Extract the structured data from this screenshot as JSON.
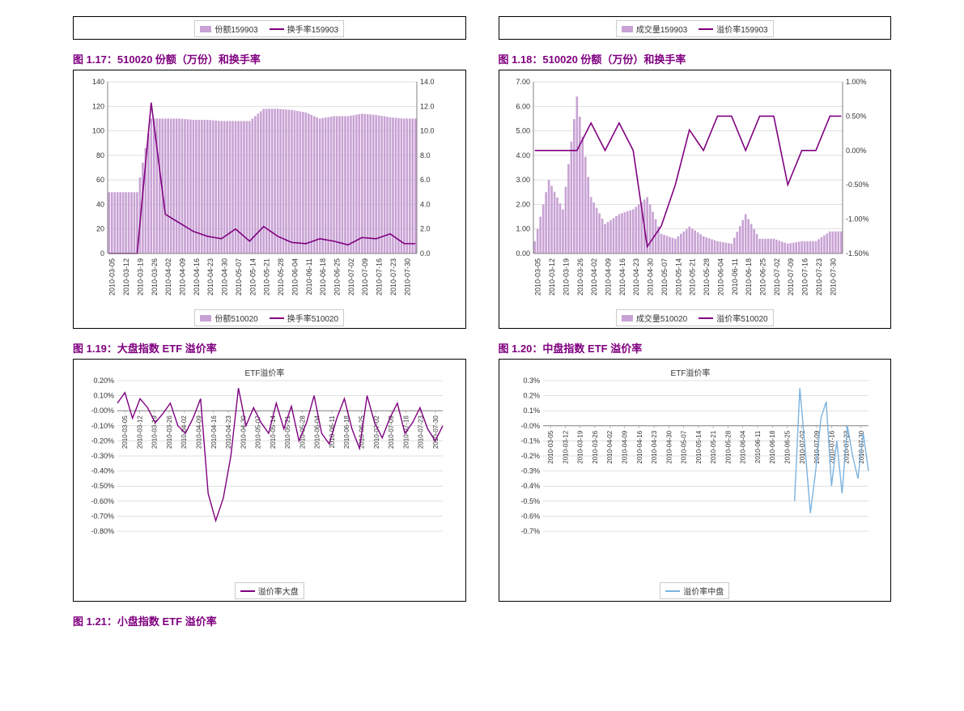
{
  "dates": [
    "2010-03-05",
    "2010-03-12",
    "2010-03-19",
    "2010-03-26",
    "2010-04-02",
    "2010-04-09",
    "2010-04-16",
    "2010-04-23",
    "2010-04-30",
    "2010-05-07",
    "2010-05-14",
    "2010-05-21",
    "2010-05-28",
    "2010-06-04",
    "2010-06-11",
    "2010-06-18",
    "2010-06-25",
    "2010-07-02",
    "2010-07-09",
    "2010-07-16",
    "2010-07-23",
    "2010-07-30"
  ],
  "chart17": {
    "title": "图 1.17：510020 份额（万份）和换手率",
    "type": "bar+line",
    "chart_title": "",
    "yL": {
      "min": 0,
      "max": 140,
      "step": 20
    },
    "yR": {
      "min": 0,
      "max": 14,
      "step": 2,
      "suffix": ".0"
    },
    "bar_color": "#c8a2d4",
    "line_color": "#800080",
    "bars_weekly": [
      50,
      50,
      50,
      110,
      110,
      110,
      109,
      109,
      108,
      108,
      108,
      118,
      118,
      117,
      115,
      110,
      112,
      112,
      114,
      113,
      111,
      110
    ],
    "line_weekly": [
      0,
      0,
      0,
      12.3,
      3.2,
      2.5,
      1.8,
      1.4,
      1.2,
      2.0,
      1.0,
      2.2,
      1.4,
      0.9,
      0.8,
      1.2,
      1.0,
      0.7,
      1.3,
      1.2,
      1.6,
      0.8
    ],
    "legend_bar": "份额510020",
    "legend_line": "换手率510020",
    "bg": "#ffffff",
    "grid": "#c0c0c0",
    "axis_font": 9
  },
  "chart18": {
    "title": "图 1.18：510020 份额（万份）和换手率",
    "type": "bar+line",
    "yL": {
      "min": 0,
      "max": 7,
      "step": 1,
      "decimals": 2
    },
    "yR": {
      "ticks": [
        "1.00%",
        "0.50%",
        "0.00%",
        "-0.50%",
        "-1.00%",
        "-1.50%"
      ],
      "vals": [
        1.0,
        0.5,
        0.0,
        -0.5,
        -1.0,
        -1.5
      ]
    },
    "bar_color": "#c8a2d4",
    "line_color": "#800080",
    "bars_weekly": [
      0.5,
      3.0,
      1.8,
      6.4,
      2.3,
      1.2,
      1.6,
      1.8,
      2.3,
      0.8,
      0.6,
      1.1,
      0.7,
      0.5,
      0.4,
      1.6,
      0.6,
      0.6,
      0.4,
      0.5,
      0.5,
      0.9
    ],
    "line_weekly": [
      0.0,
      0.0,
      0.0,
      0.0,
      0.4,
      0.0,
      0.4,
      0.0,
      -1.4,
      -1.1,
      -0.5,
      0.3,
      0.0,
      0.5,
      0.5,
      0.0,
      0.5,
      0.5,
      -0.5,
      0.0,
      0.0,
      0.5
    ],
    "legend_bar": "成交量510020",
    "legend_line": "溢价率510020",
    "bg": "#ffffff",
    "grid": "#c0c0c0",
    "axis_font": 9
  },
  "chart19": {
    "title": "图 1.19：大盘指数 ETF 溢价率",
    "type": "line",
    "chart_title": "ETF溢价率",
    "chart_title_font": 10,
    "y": {
      "min": -0.8,
      "max": 0.2,
      "step": 0.1,
      "fmt": "pct2"
    },
    "line_color": "#800080",
    "legend_line": "溢价率大盘",
    "values": [
      0.05,
      0.12,
      -0.05,
      0.08,
      0.02,
      -0.08,
      -0.02,
      0.05,
      -0.1,
      -0.15,
      -0.05,
      0.08,
      -0.55,
      -0.73,
      -0.58,
      -0.3,
      0.15,
      -0.1,
      0.02,
      -0.08,
      -0.15,
      0.05,
      -0.12,
      0.03,
      -0.2,
      -0.08,
      0.1,
      -0.15,
      -0.22,
      -0.05,
      0.08,
      -0.12,
      -0.25,
      0.1,
      -0.08,
      -0.18,
      -0.05,
      0.05,
      -0.15,
      -0.08,
      0.02,
      -0.12,
      -0.2,
      -0.1
    ],
    "bg": "#ffffff",
    "grid": "#c0c0c0",
    "axis_font": 9
  },
  "chart20": {
    "title": "图 1.20：中盘指数 ETF 溢价率",
    "type": "line",
    "chart_title": "ETF溢价率",
    "chart_title_font": 10,
    "y": {
      "min": -0.7,
      "max": 0.3,
      "step": 0.1,
      "fmt": "pct1"
    },
    "line_color": "#7bb3e0",
    "legend_line": "溢价率中盘",
    "start_index": 17,
    "values": [
      -0.5,
      0.25,
      -0.15,
      -0.58,
      -0.3,
      0.05,
      0.16,
      -0.4,
      -0.1,
      -0.45,
      0.0,
      -0.2,
      -0.35,
      -0.05,
      -0.3
    ],
    "bg": "#ffffff",
    "grid": "#c0c0c0",
    "axis_font": 9
  },
  "chart21": {
    "title": "图 1.21：小盘指数 ETF 溢价率"
  },
  "legend_top_left": {
    "bar": "份额159903",
    "line": "换手率159903"
  },
  "legend_top_right": {
    "bar": "成交量159903",
    "line": "溢价率159903"
  }
}
